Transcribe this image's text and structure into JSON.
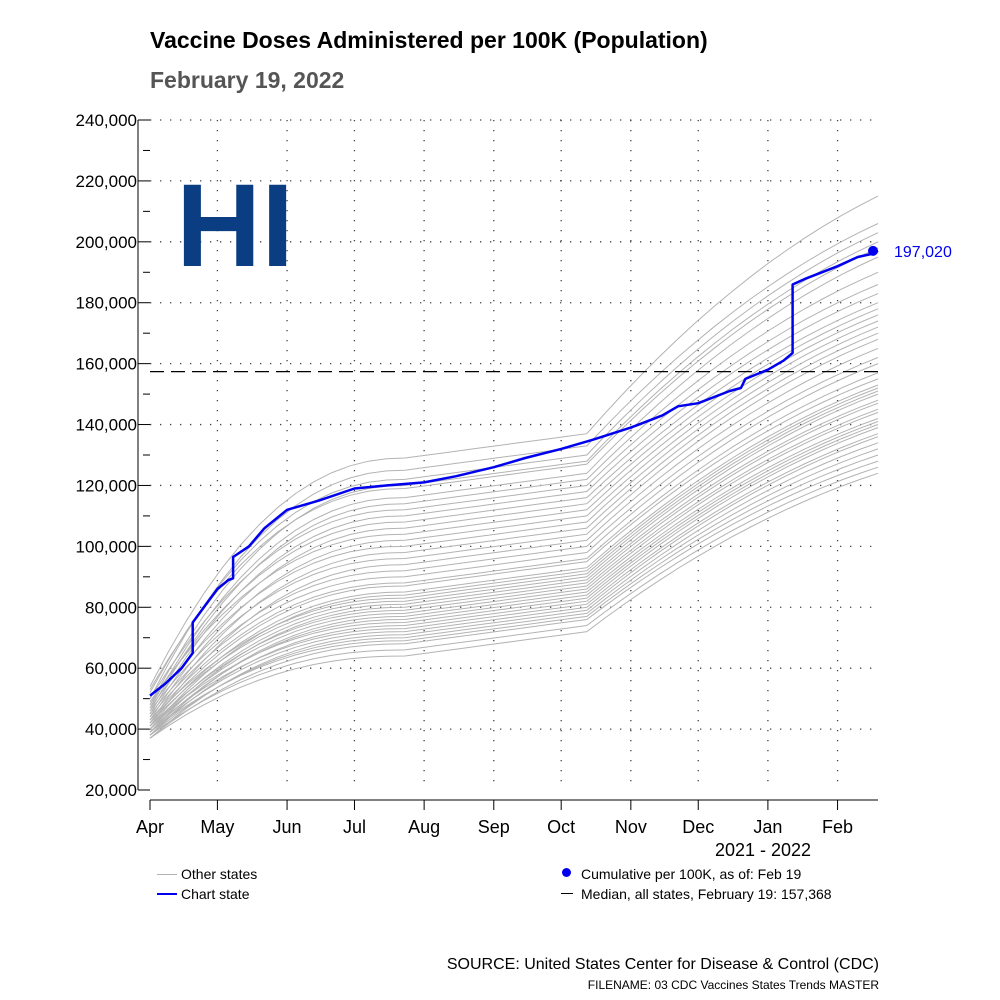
{
  "title": "Vaccine Doses Administered per 100K (Population)",
  "subtitle": "February 19, 2022",
  "state_label": "HI",
  "colors": {
    "chart_state": "#0000ee",
    "other_states": "#b3b3b3",
    "median": "#000000",
    "state_label": "#0a3d82"
  },
  "chart_data": {
    "type": "line",
    "title": "Vaccine Doses Administered per 100K (Population)",
    "subtitle": "February 19, 2022",
    "xlabel": "2021 - 2022",
    "ylabel": "",
    "x_tick_labels": [
      "Apr",
      "May",
      "Jun",
      "Jul",
      "Aug",
      "Sep",
      "Oct",
      "Nov",
      "Dec",
      "Jan",
      "Feb"
    ],
    "x_tick_dates": [
      "2021-04-01",
      "2021-05-01",
      "2021-06-01",
      "2021-07-01",
      "2021-08-01",
      "2021-09-01",
      "2021-10-01",
      "2021-11-01",
      "2021-12-01",
      "2022-01-01",
      "2022-02-01"
    ],
    "xlim": [
      "2021-04-01",
      "2022-02-19"
    ],
    "ylim": [
      20000,
      240000
    ],
    "y_ticks": [
      20000,
      40000,
      60000,
      80000,
      100000,
      120000,
      140000,
      160000,
      180000,
      200000,
      220000,
      240000
    ],
    "y_tick_labels": [
      "20,000",
      "40,000",
      "60,000",
      "80,000",
      "100,000",
      "120,000",
      "140,000",
      "160,000",
      "180,000",
      "200,000",
      "220,000",
      "240,000"
    ],
    "grid": true,
    "chart_state": {
      "name": "Chart state",
      "points": [
        [
          "2021-04-01",
          51000
        ],
        [
          "2021-04-08",
          55000
        ],
        [
          "2021-04-15",
          60000
        ],
        [
          "2021-04-20",
          65000
        ],
        [
          "2021-04-20",
          75000
        ],
        [
          "2021-04-25",
          80000
        ],
        [
          "2021-05-01",
          86000
        ],
        [
          "2021-05-06",
          89000
        ],
        [
          "2021-05-08",
          89500
        ],
        [
          "2021-05-08",
          96500
        ],
        [
          "2021-05-15",
          100000
        ],
        [
          "2021-05-22",
          106000
        ],
        [
          "2021-06-01",
          112000
        ],
        [
          "2021-06-15",
          115000
        ],
        [
          "2021-07-01",
          119000
        ],
        [
          "2021-07-15",
          120000
        ],
        [
          "2021-08-01",
          121000
        ],
        [
          "2021-08-15",
          123000
        ],
        [
          "2021-09-01",
          126000
        ],
        [
          "2021-09-15",
          129000
        ],
        [
          "2021-10-01",
          132000
        ],
        [
          "2021-10-15",
          135000
        ],
        [
          "2021-11-01",
          139000
        ],
        [
          "2021-11-15",
          143000
        ],
        [
          "2021-11-22",
          146000
        ],
        [
          "2021-12-01",
          147000
        ],
        [
          "2021-12-15",
          151000
        ],
        [
          "2021-12-20",
          152000
        ],
        [
          "2021-12-22",
          155000
        ],
        [
          "2022-01-01",
          158000
        ],
        [
          "2022-01-08",
          161000
        ],
        [
          "2022-01-12",
          163500
        ],
        [
          "2022-01-12",
          186000
        ],
        [
          "2022-01-18",
          188000
        ],
        [
          "2022-02-01",
          192000
        ],
        [
          "2022-02-10",
          195000
        ],
        [
          "2022-02-16",
          196000
        ],
        [
          "2022-02-19",
          197020
        ]
      ]
    },
    "median": {
      "name": "Median, all states, February 19",
      "value": 157368,
      "value_label": "157,368"
    },
    "endpoint": {
      "date": "2022-02-19",
      "value": 197020,
      "value_label": "197,020"
    },
    "other_states": [
      {
        "start": 54000,
        "mid": 137000,
        "end": 215000
      },
      {
        "start": 50000,
        "mid": 133000,
        "end": 206000
      },
      {
        "start": 52000,
        "mid": 130000,
        "end": 203000
      },
      {
        "start": 48000,
        "mid": 128000,
        "end": 200000
      },
      {
        "start": 53000,
        "mid": 127000,
        "end": 198000
      },
      {
        "start": 47000,
        "mid": 124000,
        "end": 195000
      },
      {
        "start": 46000,
        "mid": 122000,
        "end": 190000
      },
      {
        "start": 50000,
        "mid": 120000,
        "end": 186000
      },
      {
        "start": 45000,
        "mid": 118000,
        "end": 183000
      },
      {
        "start": 48000,
        "mid": 116000,
        "end": 180000
      },
      {
        "start": 44000,
        "mid": 114000,
        "end": 178000
      },
      {
        "start": 49000,
        "mid": 112000,
        "end": 176000
      },
      {
        "start": 43000,
        "mid": 110000,
        "end": 174000
      },
      {
        "start": 47000,
        "mid": 108000,
        "end": 172000
      },
      {
        "start": 42000,
        "mid": 106000,
        "end": 170000
      },
      {
        "start": 46000,
        "mid": 104000,
        "end": 168000
      },
      {
        "start": 41000,
        "mid": 102000,
        "end": 165000
      },
      {
        "start": 45000,
        "mid": 100000,
        "end": 162000
      },
      {
        "start": 44000,
        "mid": 98000,
        "end": 160000
      },
      {
        "start": 43000,
        "mid": 96000,
        "end": 157000
      },
      {
        "start": 42000,
        "mid": 95000,
        "end": 155000
      },
      {
        "start": 41000,
        "mid": 93000,
        "end": 153000
      },
      {
        "start": 40000,
        "mid": 92000,
        "end": 152000
      },
      {
        "start": 43000,
        "mid": 91000,
        "end": 151000
      },
      {
        "start": 42000,
        "mid": 90000,
        "end": 150000
      },
      {
        "start": 40000,
        "mid": 89000,
        "end": 148000
      },
      {
        "start": 39000,
        "mid": 88000,
        "end": 147000
      },
      {
        "start": 41000,
        "mid": 87000,
        "end": 145000
      },
      {
        "start": 40000,
        "mid": 86000,
        "end": 144000
      },
      {
        "start": 38000,
        "mid": 85000,
        "end": 142000
      },
      {
        "start": 39000,
        "mid": 84000,
        "end": 141000
      },
      {
        "start": 41000,
        "mid": 83000,
        "end": 140000
      },
      {
        "start": 38000,
        "mid": 82000,
        "end": 139000
      },
      {
        "start": 40000,
        "mid": 81000,
        "end": 137000
      },
      {
        "start": 39000,
        "mid": 80000,
        "end": 136000
      },
      {
        "start": 37000,
        "mid": 79000,
        "end": 134000
      },
      {
        "start": 38000,
        "mid": 78000,
        "end": 132000
      },
      {
        "start": 39000,
        "mid": 77000,
        "end": 130000
      },
      {
        "start": 37000,
        "mid": 76000,
        "end": 128000
      },
      {
        "start": 38000,
        "mid": 74000,
        "end": 126000
      },
      {
        "start": 37000,
        "mid": 72000,
        "end": 124000
      }
    ]
  },
  "legend": {
    "other_states": "Other states",
    "chart_state": "Chart state",
    "cumulative": "Cumulative per 100K, as of: Feb 19",
    "median": "Median, all states, February 19: 157,368"
  },
  "source": "SOURCE: United States Center for Disease & Control (CDC)",
  "filename": "FILENAME: 03 CDC Vaccines States Trends MASTER"
}
